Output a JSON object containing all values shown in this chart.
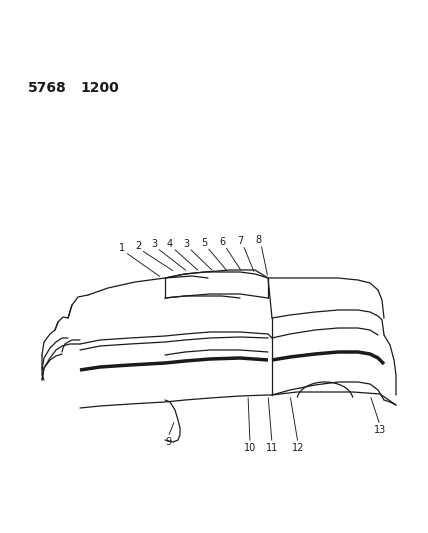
{
  "header_text1": "5768",
  "header_text2": "1200",
  "bg_color": "#ffffff",
  "line_color": "#1a1a1a",
  "text_color": "#1a1a1a",
  "header_fontsize": 10,
  "callout_fontsize": 7,
  "fig_w": 4.28,
  "fig_h": 5.33,
  "dpi": 100
}
